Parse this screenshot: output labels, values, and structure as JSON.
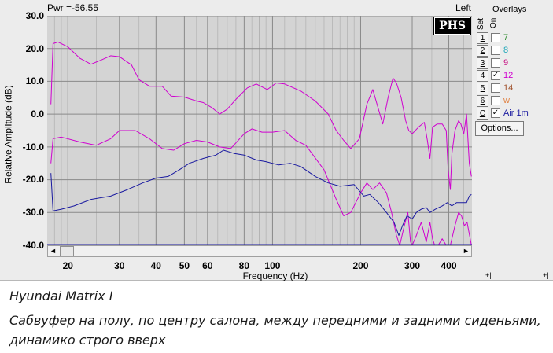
{
  "window": {
    "power_readout": "Pwr =-56.55",
    "channel_label": "Left",
    "logo_text": "PHS",
    "ylabel": "Relative Amplitude (dB)",
    "xlabel": "Frequency (Hz)"
  },
  "overlays": {
    "title": "Overlays",
    "header_set": "Set",
    "header_on": "On",
    "items": [
      {
        "button": "1",
        "checked": false,
        "name": "7",
        "color": "#2e8b2e"
      },
      {
        "button": "2",
        "checked": false,
        "name": "8",
        "color": "#1fa6b8"
      },
      {
        "button": "3",
        "checked": false,
        "name": "9",
        "color": "#c71585"
      },
      {
        "button": "4",
        "checked": true,
        "name": "12",
        "color": "#d000d0"
      },
      {
        "button": "5",
        "checked": false,
        "name": "14",
        "color": "#a0522d"
      },
      {
        "button": "6",
        "checked": false,
        "name": "w",
        "color": "#e08040"
      },
      {
        "button": "C",
        "checked": true,
        "name": "Air 1m",
        "color": "#1a1aa0"
      }
    ],
    "options_label": "Options...",
    "check_glyph": "✓"
  },
  "scrollbar": {
    "left_arrow": "◄",
    "right_arrow": "►"
  },
  "corner_controls": {
    "left": "+|",
    "right": "+|"
  },
  "caption": {
    "title": "Hyundai Matrix I",
    "description": "Сабвуфер на полу, по центру салона, между передними и задними сиденьями, динамико строго вверх"
  },
  "chart_data": {
    "type": "line",
    "title": "",
    "xlabel": "Frequency (Hz)",
    "ylabel": "Relative Amplitude (dB)",
    "xscale": "log",
    "xlim": [
      17,
      480
    ],
    "ylim": [
      -40,
      30
    ],
    "yticks": [
      30,
      20,
      10,
      0,
      -10,
      -20,
      -30,
      -40
    ],
    "ytick_labels": [
      "30.0",
      "20.0",
      "10.0",
      "0.0",
      "-10.0",
      "-20.0",
      "-30.0",
      "-40.0"
    ],
    "xticks": [
      20,
      30,
      40,
      50,
      60,
      80,
      100,
      200,
      300,
      400
    ],
    "xtick_labels": [
      "20",
      "30",
      "40",
      "50",
      "60",
      "80",
      "100",
      "200",
      "300",
      "400"
    ],
    "grid": true,
    "series": [
      {
        "name": "12 (upper)",
        "color": "#d000d0",
        "points": [
          [
            17.5,
            3
          ],
          [
            17.8,
            21.5
          ],
          [
            18.5,
            22
          ],
          [
            20,
            20.5
          ],
          [
            22,
            17
          ],
          [
            24,
            15.2
          ],
          [
            26,
            16.5
          ],
          [
            28,
            17.8
          ],
          [
            30,
            17.5
          ],
          [
            33,
            15
          ],
          [
            35,
            10.5
          ],
          [
            38,
            8.5
          ],
          [
            42,
            8.5
          ],
          [
            45,
            5.5
          ],
          [
            50,
            5.2
          ],
          [
            55,
            4
          ],
          [
            58,
            3.5
          ],
          [
            62,
            2
          ],
          [
            66,
            0
          ],
          [
            70,
            1.5
          ],
          [
            75,
            4.5
          ],
          [
            82,
            8
          ],
          [
            88,
            9.2
          ],
          [
            96,
            7.5
          ],
          [
            103,
            9.5
          ],
          [
            110,
            9.2
          ],
          [
            125,
            7
          ],
          [
            140,
            4
          ],
          [
            155,
            0
          ],
          [
            165,
            -5
          ],
          [
            175,
            -8
          ],
          [
            185,
            -10.5
          ],
          [
            198,
            -7.5
          ],
          [
            210,
            3
          ],
          [
            220,
            7.5
          ],
          [
            230,
            1.5
          ],
          [
            238,
            -3
          ],
          [
            248,
            5
          ],
          [
            258,
            11
          ],
          [
            265,
            9.5
          ],
          [
            275,
            5
          ],
          [
            285,
            -2
          ],
          [
            292,
            -5
          ],
          [
            300,
            -6
          ],
          [
            315,
            -4
          ],
          [
            330,
            -2.5
          ],
          [
            338,
            -8
          ],
          [
            345,
            -13.5
          ],
          [
            352,
            -4
          ],
          [
            365,
            -3
          ],
          [
            380,
            -3
          ],
          [
            392,
            -5
          ],
          [
            398,
            -17
          ],
          [
            405,
            -23
          ],
          [
            410,
            -12
          ],
          [
            420,
            -5
          ],
          [
            432,
            -2
          ],
          [
            440,
            -3
          ],
          [
            450,
            -6
          ],
          [
            460,
            0
          ],
          [
            470,
            -15
          ],
          [
            478,
            -19
          ]
        ]
      },
      {
        "name": "12 (lower)",
        "color": "#d000d0",
        "points": [
          [
            17.5,
            -15
          ],
          [
            17.8,
            -7.5
          ],
          [
            19,
            -7
          ],
          [
            22,
            -8.5
          ],
          [
            25,
            -9.5
          ],
          [
            28,
            -7.5
          ],
          [
            30,
            -5
          ],
          [
            34,
            -5
          ],
          [
            38,
            -7.5
          ],
          [
            42,
            -10.5
          ],
          [
            46,
            -11
          ],
          [
            50,
            -9
          ],
          [
            55,
            -8
          ],
          [
            60,
            -8.5
          ],
          [
            66,
            -10
          ],
          [
            72,
            -10.5
          ],
          [
            80,
            -6
          ],
          [
            85,
            -4.5
          ],
          [
            92,
            -5.5
          ],
          [
            100,
            -5.5
          ],
          [
            110,
            -5
          ],
          [
            120,
            -8
          ],
          [
            130,
            -9.5
          ],
          [
            150,
            -17
          ],
          [
            165,
            -26
          ],
          [
            175,
            -31
          ],
          [
            185,
            -30
          ],
          [
            200,
            -24
          ],
          [
            210,
            -21
          ],
          [
            220,
            -23
          ],
          [
            232,
            -21
          ],
          [
            245,
            -24
          ],
          [
            255,
            -30
          ],
          [
            265,
            -37
          ],
          [
            272,
            -41
          ],
          [
            282,
            -34
          ],
          [
            290,
            -30
          ],
          [
            296,
            -39
          ],
          [
            300,
            -41
          ],
          [
            310,
            -37
          ],
          [
            322,
            -33
          ],
          [
            335,
            -39
          ],
          [
            345,
            -33
          ],
          [
            352,
            -38
          ],
          [
            358,
            -41
          ],
          [
            368,
            -41
          ],
          [
            380,
            -38
          ],
          [
            392,
            -41
          ],
          [
            405,
            -43
          ],
          [
            420,
            -34
          ],
          [
            432,
            -30
          ],
          [
            442,
            -31
          ],
          [
            452,
            -34
          ],
          [
            462,
            -33
          ],
          [
            478,
            -41
          ]
        ]
      },
      {
        "name": "Air 1m",
        "color": "#1a1aa0",
        "points": [
          [
            17.5,
            -18
          ],
          [
            17.8,
            -29.5
          ],
          [
            19,
            -29
          ],
          [
            21,
            -28
          ],
          [
            24,
            -26
          ],
          [
            28,
            -25
          ],
          [
            32,
            -23
          ],
          [
            36,
            -21
          ],
          [
            40,
            -19.5
          ],
          [
            44,
            -19
          ],
          [
            48,
            -17
          ],
          [
            52,
            -15
          ],
          [
            58,
            -13.5
          ],
          [
            64,
            -12.5
          ],
          [
            68,
            -11
          ],
          [
            74,
            -12
          ],
          [
            80,
            -12.5
          ],
          [
            88,
            -14
          ],
          [
            95,
            -14.5
          ],
          [
            105,
            -15.5
          ],
          [
            115,
            -15
          ],
          [
            125,
            -16
          ],
          [
            140,
            -19
          ],
          [
            155,
            -21
          ],
          [
            170,
            -22
          ],
          [
            190,
            -21.5
          ],
          [
            205,
            -25
          ],
          [
            215,
            -24.5
          ],
          [
            230,
            -27
          ],
          [
            245,
            -30
          ],
          [
            260,
            -33
          ],
          [
            270,
            -37
          ],
          [
            278,
            -34
          ],
          [
            288,
            -31
          ],
          [
            300,
            -32
          ],
          [
            310,
            -30
          ],
          [
            322,
            -29
          ],
          [
            335,
            -28.5
          ],
          [
            345,
            -30
          ],
          [
            360,
            -29
          ],
          [
            380,
            -28
          ],
          [
            395,
            -27
          ],
          [
            410,
            -28
          ],
          [
            425,
            -27
          ],
          [
            440,
            -27
          ],
          [
            460,
            -27
          ],
          [
            470,
            -25
          ],
          [
            478,
            -24.5
          ]
        ]
      }
    ]
  }
}
